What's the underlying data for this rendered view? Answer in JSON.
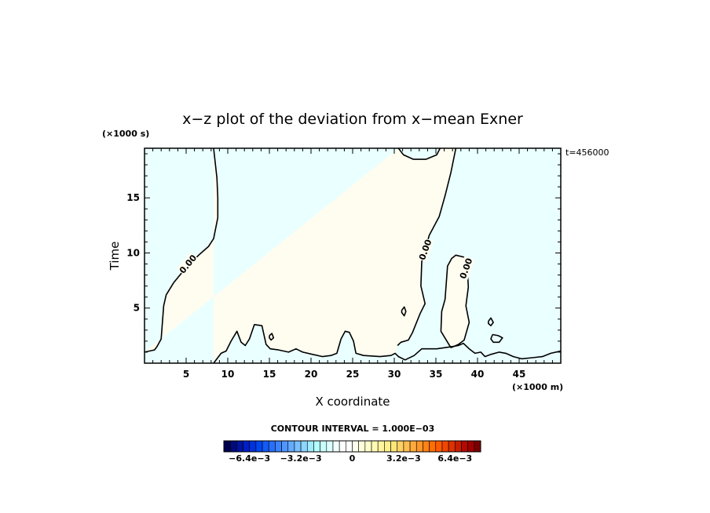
{
  "chart_data": {
    "type": "heatmap",
    "title": "x−z plot of the deviation from x−mean Exner",
    "time_label": "t=456000",
    "xlabel": "X coordinate",
    "ylabel": "Time",
    "x_unit": "(×1000 m)",
    "y_unit": "(×1000 s)",
    "xlim": [
      0,
      50
    ],
    "ylim": [
      0,
      19.5
    ],
    "x_ticks": [
      5,
      10,
      15,
      20,
      25,
      30,
      35,
      40,
      45
    ],
    "x_tick_labels": [
      "5",
      "10",
      "15",
      "20",
      "25",
      "30",
      "35",
      "40",
      "45"
    ],
    "y_ticks": [
      5,
      10,
      15
    ],
    "y_tick_labels": [
      "5",
      "10",
      "15"
    ],
    "contour_interval_text": "CONTOUR INTERVAL = 1.000E−03",
    "contour_labels": [
      {
        "text": "0.00",
        "x": 5.2,
        "y": 9.0,
        "angle": -50
      },
      {
        "text": "0.00",
        "x": 33.7,
        "y": 10.3,
        "angle": -70
      },
      {
        "text": "0.00",
        "x": 38.6,
        "y": 8.6,
        "angle": -70
      }
    ],
    "regions": [
      {
        "name": "negative",
        "color": "#eaffff"
      },
      {
        "name": "positive",
        "color": "#fefdf0"
      }
    ],
    "zero_contours": [
      {
        "name": "left-boundary",
        "points": [
          [
            0,
            1.0
          ],
          [
            1.2,
            1.2
          ],
          [
            1.5,
            1.5
          ],
          [
            2.0,
            2.2
          ],
          [
            2.3,
            5.2
          ],
          [
            2.6,
            6.2
          ],
          [
            3.5,
            7.3
          ],
          [
            4.8,
            8.5
          ],
          [
            6.5,
            9.8
          ],
          [
            7.7,
            10.6
          ],
          [
            8.3,
            11.3
          ],
          [
            8.8,
            13.2
          ],
          [
            8.8,
            15.0
          ],
          [
            8.7,
            16.8
          ],
          [
            8.3,
            19.5
          ]
        ]
      },
      {
        "name": "right-boundary",
        "points": [
          [
            37.4,
            19.5
          ],
          [
            36.8,
            17.3
          ],
          [
            36.1,
            15.2
          ],
          [
            35.4,
            13.3
          ],
          [
            34.2,
            11.6
          ],
          [
            33.3,
            9.2
          ],
          [
            33.2,
            7.0
          ],
          [
            33.7,
            5.4
          ],
          [
            33.1,
            4.5
          ],
          [
            32.2,
            2.8
          ],
          [
            31.7,
            2.1
          ],
          [
            30.8,
            1.9
          ],
          [
            30.4,
            1.6
          ]
        ]
      },
      {
        "name": "top-bump",
        "points": [
          [
            30.5,
            19.5
          ],
          [
            31.1,
            18.9
          ],
          [
            32.3,
            18.5
          ],
          [
            33.8,
            18.5
          ],
          [
            35.1,
            18.9
          ],
          [
            35.5,
            19.5
          ]
        ]
      },
      {
        "name": "bottom-edge",
        "points": [
          [
            8.3,
            0
          ],
          [
            9.2,
            0.9
          ],
          [
            9.8,
            1.1
          ],
          [
            10.4,
            2.0
          ],
          [
            11.1,
            2.9
          ],
          [
            11.6,
            1.9
          ],
          [
            12.1,
            1.6
          ],
          [
            12.6,
            2.2
          ],
          [
            13.2,
            3.5
          ],
          [
            14.1,
            3.4
          ],
          [
            14.6,
            1.7
          ],
          [
            15.1,
            1.3
          ],
          [
            16.1,
            1.2
          ],
          [
            17.3,
            1.0
          ],
          [
            18.2,
            1.3
          ],
          [
            19.0,
            1.0
          ],
          [
            20.2,
            0.8
          ],
          [
            21.4,
            0.6
          ],
          [
            22.4,
            0.7
          ],
          [
            23.1,
            0.9
          ],
          [
            23.6,
            2.2
          ],
          [
            24.1,
            2.9
          ],
          [
            24.6,
            2.8
          ],
          [
            25.1,
            2.0
          ],
          [
            25.4,
            0.9
          ],
          [
            26.3,
            0.7
          ],
          [
            28.3,
            0.6
          ],
          [
            29.6,
            0.7
          ],
          [
            30.1,
            0.9
          ],
          [
            30.5,
            0.6
          ],
          [
            31.3,
            0.3
          ],
          [
            32.4,
            0.7
          ],
          [
            33.3,
            1.3
          ],
          [
            35.1,
            1.3
          ],
          [
            36.0,
            1.4
          ],
          [
            36.9,
            1.5
          ],
          [
            37.7,
            1.6
          ],
          [
            38.3,
            1.8
          ],
          [
            39.0,
            1.3
          ],
          [
            39.7,
            0.9
          ],
          [
            40.4,
            1.0
          ],
          [
            40.9,
            0.6
          ],
          [
            41.6,
            0.8
          ],
          [
            42.6,
            1.0
          ],
          [
            43.4,
            0.9
          ],
          [
            44.3,
            0.6
          ],
          [
            45.3,
            0.4
          ],
          [
            46.6,
            0.5
          ],
          [
            47.8,
            0.6
          ],
          [
            48.8,
            0.9
          ],
          [
            50,
            1.1
          ]
        ]
      },
      {
        "name": "right-inner-tongue",
        "points": [
          [
            36.8,
            1.4
          ],
          [
            35.6,
            2.9
          ],
          [
            35.7,
            4.7
          ],
          [
            36.1,
            5.8
          ],
          [
            36.4,
            8.8
          ],
          [
            36.9,
            9.5
          ],
          [
            37.4,
            9.8
          ],
          [
            38.5,
            9.6
          ],
          [
            38.8,
            8.2
          ],
          [
            38.9,
            6.9
          ],
          [
            38.6,
            5.2
          ],
          [
            39.0,
            3.7
          ],
          [
            38.4,
            2.1
          ],
          [
            37.7,
            1.7
          ],
          [
            36.8,
            1.4
          ]
        ]
      },
      {
        "name": "blob-31",
        "points": [
          [
            30.9,
            4.8
          ],
          [
            31.2,
            5.1
          ],
          [
            31.4,
            4.7
          ],
          [
            31.2,
            4.3
          ],
          [
            30.9,
            4.6
          ],
          [
            30.9,
            4.8
          ]
        ]
      },
      {
        "name": "blob-41",
        "points": [
          [
            41.3,
            3.8
          ],
          [
            41.6,
            4.1
          ],
          [
            41.9,
            3.7
          ],
          [
            41.6,
            3.4
          ],
          [
            41.3,
            3.6
          ],
          [
            41.3,
            3.8
          ]
        ]
      },
      {
        "name": "blob-42",
        "points": [
          [
            41.8,
            2.6
          ],
          [
            42.5,
            2.5
          ],
          [
            43.0,
            2.3
          ],
          [
            42.6,
            1.9
          ],
          [
            41.9,
            1.9
          ],
          [
            41.6,
            2.2
          ],
          [
            41.8,
            2.6
          ]
        ]
      },
      {
        "name": "blob-15",
        "points": [
          [
            15.0,
            2.5
          ],
          [
            15.3,
            2.7
          ],
          [
            15.5,
            2.3
          ],
          [
            15.2,
            2.1
          ],
          [
            15.0,
            2.3
          ],
          [
            15.0,
            2.5
          ]
        ]
      }
    ],
    "colorbar": {
      "colors": [
        "#000050",
        "#000a78",
        "#0014a0",
        "#001ec8",
        "#0032dc",
        "#0046f0",
        "#145af5",
        "#286efa",
        "#3c82ff",
        "#5096ff",
        "#64aaff",
        "#78c0ff",
        "#8cd6ff",
        "#a0ebff",
        "#b4ffff",
        "#c8ffff",
        "#dcffff",
        "#f0ffff",
        "#ffffff",
        "#ffffff",
        "#fffff0",
        "#ffffdc",
        "#ffffc8",
        "#fffab4",
        "#fff5a0",
        "#fff08c",
        "#ffe678",
        "#ffd264",
        "#ffbe50",
        "#ffaa3c",
        "#ff9628",
        "#ff8214",
        "#ff6e00",
        "#ff5a00",
        "#f04600",
        "#dc3200",
        "#c81e00",
        "#b40a00",
        "#a00000",
        "#780000"
      ],
      "labels": [
        "−6.4e−3",
        "−3.2e−3",
        "0",
        "3.2e−3",
        "6.4e−3"
      ]
    }
  }
}
